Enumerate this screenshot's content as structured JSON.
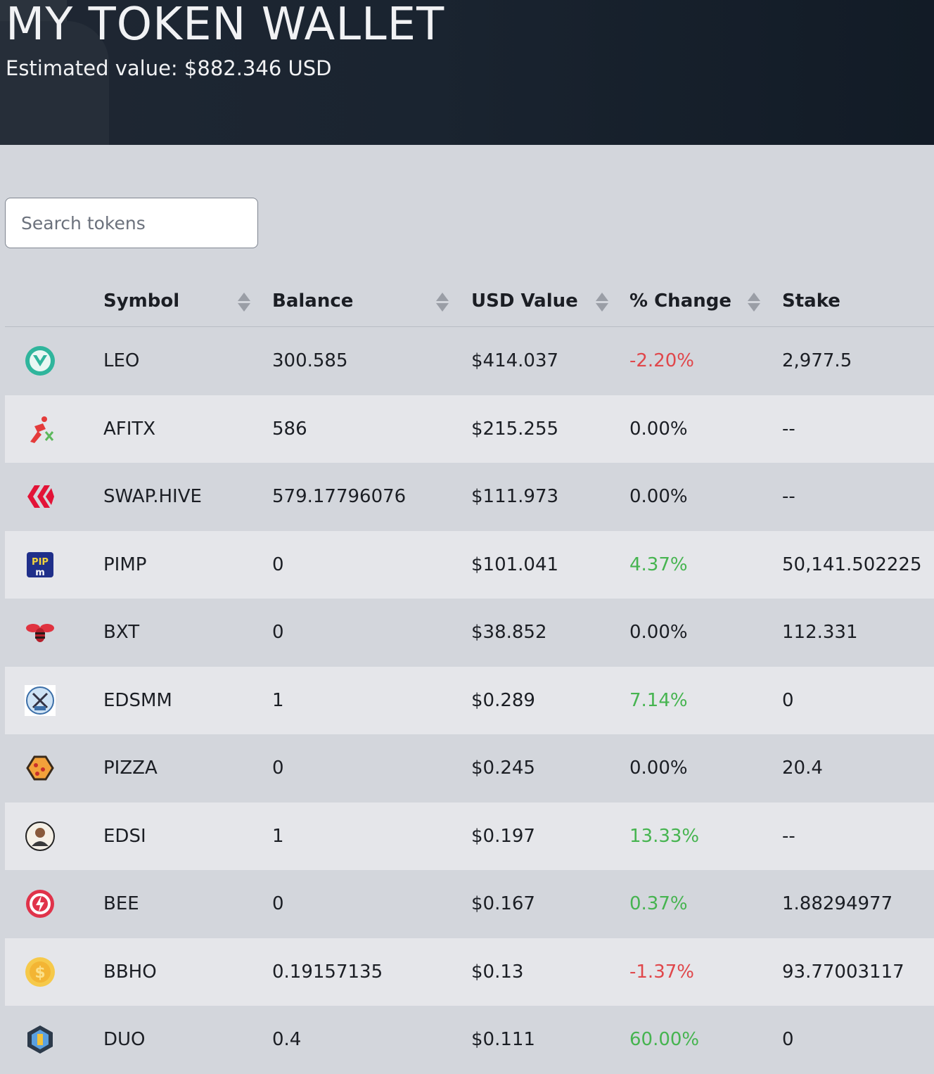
{
  "header": {
    "title": "MY TOKEN WALLET",
    "estimated_value": "Estimated value: $882.346 USD"
  },
  "search": {
    "placeholder": "Search tokens",
    "value": ""
  },
  "table": {
    "columns": [
      "",
      "Symbol",
      "Balance",
      "USD Value",
      "% Change",
      "Stake"
    ],
    "rows": [
      {
        "icon": "leo-icon",
        "symbol": "LEO",
        "balance": "300.585",
        "usd": "$414.037",
        "change": "-2.20%",
        "trend": "neg",
        "stake": "2,977.5"
      },
      {
        "icon": "afitx-icon",
        "symbol": "AFITX",
        "balance": "586",
        "usd": "$215.255",
        "change": "0.00%",
        "trend": "neu",
        "stake": "--"
      },
      {
        "icon": "swap-hive-icon",
        "symbol": "SWAP.HIVE",
        "balance": "579.17796076",
        "usd": "$111.973",
        "change": "0.00%",
        "trend": "neu",
        "stake": "--"
      },
      {
        "icon": "pimp-icon",
        "symbol": "PIMP",
        "balance": "0",
        "usd": "$101.041",
        "change": "4.37%",
        "trend": "pos",
        "stake": "50,141.502225"
      },
      {
        "icon": "bxt-icon",
        "symbol": "BXT",
        "balance": "0",
        "usd": "$38.852",
        "change": "0.00%",
        "trend": "neu",
        "stake": "112.331"
      },
      {
        "icon": "edsmm-icon",
        "symbol": "EDSMM",
        "balance": "1",
        "usd": "$0.289",
        "change": "7.14%",
        "trend": "pos",
        "stake": "0"
      },
      {
        "icon": "pizza-icon",
        "symbol": "PIZZA",
        "balance": "0",
        "usd": "$0.245",
        "change": "0.00%",
        "trend": "neu",
        "stake": "20.4"
      },
      {
        "icon": "edsi-icon",
        "symbol": "EDSI",
        "balance": "1",
        "usd": "$0.197",
        "change": "13.33%",
        "trend": "pos",
        "stake": "--"
      },
      {
        "icon": "bee-icon",
        "symbol": "BEE",
        "balance": "0",
        "usd": "$0.167",
        "change": "0.37%",
        "trend": "pos",
        "stake": "1.88294977"
      },
      {
        "icon": "bbho-icon",
        "symbol": "BBHO",
        "balance": "0.19157135",
        "usd": "$0.13",
        "change": "-1.37%",
        "trend": "neg",
        "stake": "93.77003117"
      },
      {
        "icon": "duo-icon",
        "symbol": "DUO",
        "balance": "0.4",
        "usd": "$0.111",
        "change": "60.00%",
        "trend": "pos",
        "stake": "0"
      }
    ]
  },
  "colors": {
    "negative": "#e0474b",
    "positive": "#46b450"
  }
}
